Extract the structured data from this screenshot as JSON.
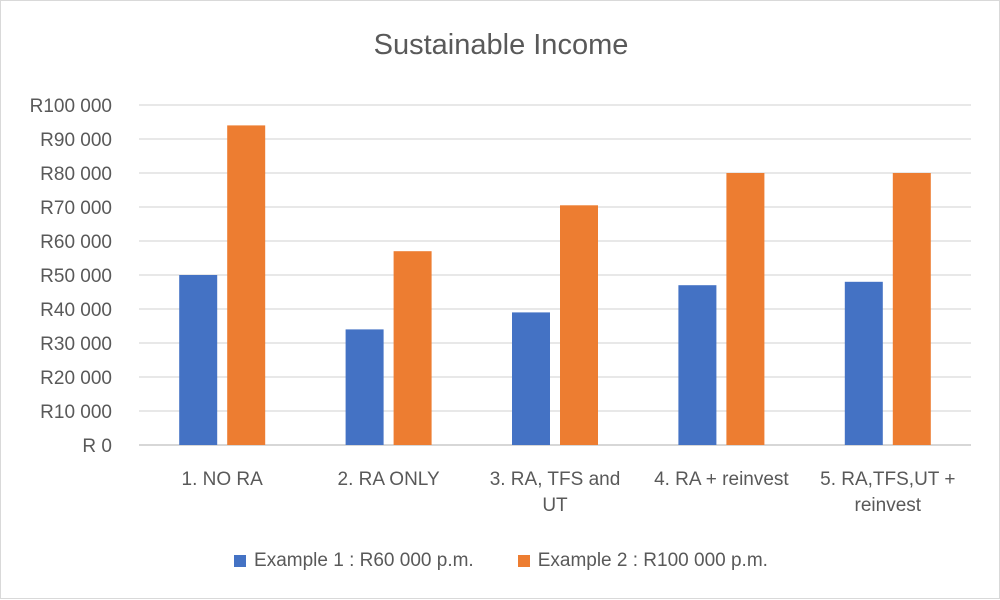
{
  "chart_data": {
    "type": "bar",
    "title": "Sustainable Income",
    "categories": [
      [
        "1. NO RA"
      ],
      [
        "2. RA ONLY"
      ],
      [
        "3. RA, TFS and",
        "UT"
      ],
      [
        "4. RA + reinvest"
      ],
      [
        "5. RA,TFS,UT +",
        "reinvest"
      ]
    ],
    "series": [
      {
        "name": "Example 1 : R60 000 p.m.",
        "color": "#4472c4",
        "values": [
          50000,
          34000,
          39000,
          47000,
          48000
        ]
      },
      {
        "name": "Example 2 : R100 000 p.m.",
        "color": "#ed7d31",
        "values": [
          94000,
          57000,
          70500,
          80000,
          80000
        ]
      }
    ],
    "y_ticks": [
      "R 0",
      "R10 000",
      "R20 000",
      "R30 000",
      "R40 000",
      "R50 000",
      "R60 000",
      "R70 000",
      "R80 000",
      "R90 000",
      "R100 000"
    ],
    "ylim": [
      0,
      100000
    ],
    "grid": true,
    "legend": "bottom"
  }
}
